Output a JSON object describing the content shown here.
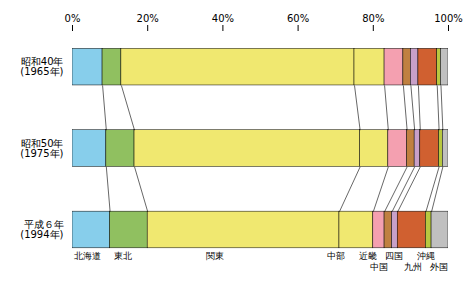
{
  "chart_data": {
    "type": "bar",
    "orientation": "horizontal",
    "stacked": true,
    "categories": [
      "昭和40年\n(1965年)",
      "昭和50年\n(1975年)",
      "平成６年\n(1994年)"
    ],
    "series": [
      {
        "color": "#87CEEB",
        "values": [
          8.0,
          9.0,
          10.0
        ]
      },
      {
        "color": "#90C060",
        "values": [
          5.0,
          7.5,
          10.0
        ]
      },
      {
        "color": "#F0E870",
        "values": [
          62.0,
          60.0,
          51.0
        ]
      },
      {
        "color": "#F0E870",
        "values": [
          8.0,
          7.5,
          9.0
        ]
      },
      {
        "color": "#F4A0B0",
        "values": [
          5.0,
          5.0,
          3.0
        ]
      },
      {
        "color": "#C08040",
        "values": [
          2.0,
          2.0,
          2.0
        ]
      },
      {
        "color": "#C8A0C8",
        "values": [
          2.0,
          1.5,
          1.5
        ]
      },
      {
        "color": "#D06030",
        "values": [
          5.0,
          5.0,
          7.5
        ]
      },
      {
        "color": "#B8C840",
        "values": [
          1.0,
          1.0,
          1.5
        ]
      },
      {
        "color": "#C0C0C0",
        "values": [
          2.0,
          1.5,
          4.5
        ]
      }
    ],
    "xlim": [
      0,
      100
    ],
    "xticks": [
      {
        "value": 0,
        "label": "0%"
      },
      {
        "value": 20,
        "label": "20%"
      },
      {
        "value": 40,
        "label": "40%"
      },
      {
        "value": 60,
        "label": "60%"
      },
      {
        "value": 80,
        "label": "80%"
      },
      {
        "value": 100,
        "label": "100%"
      }
    ],
    "annotations": [
      {
        "text": "北海道",
        "x": 4.0
      },
      {
        "text": "東北",
        "x": 13.5
      },
      {
        "text": "関東",
        "x": 38.0
      },
      {
        "text": "中部",
        "x": 70.0
      },
      {
        "text": "近畿",
        "x": 78.5
      },
      {
        "text": "中国",
        "x": 81.5
      },
      {
        "text": "四国",
        "x": 85.5
      },
      {
        "text": "九州",
        "x": 90.5
      },
      {
        "text": "沖縄",
        "x": 94.0
      },
      {
        "text": "外国",
        "x": 97.5
      }
    ]
  }
}
